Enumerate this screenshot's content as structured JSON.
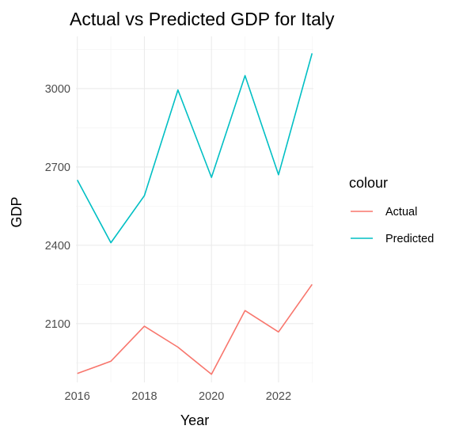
{
  "chart_data": {
    "type": "line",
    "title": "Actual vs Predicted GDP for Italy",
    "xlabel": "Year",
    "ylabel": "GDP",
    "x": [
      2016,
      2017,
      2018,
      2019,
      2020,
      2021,
      2022,
      2023
    ],
    "xticks": [
      2016,
      2018,
      2020,
      2022
    ],
    "xlim": [
      2015.96,
      2023.04
    ],
    "yticks": [
      2100,
      2400,
      2700,
      3000
    ],
    "ylim": [
      1875,
      3200
    ],
    "grid": true,
    "legend": {
      "title": "colour",
      "position": "right"
    },
    "series": [
      {
        "name": "Actual",
        "color": "#F8766D",
        "values": [
          1909,
          1956,
          2090,
          2010,
          1906,
          2150,
          2068,
          2250
        ]
      },
      {
        "name": "Predicted",
        "color": "#00BFC4",
        "values": [
          2650,
          2410,
          2590,
          2995,
          2660,
          3050,
          2670,
          3135
        ]
      }
    ]
  }
}
